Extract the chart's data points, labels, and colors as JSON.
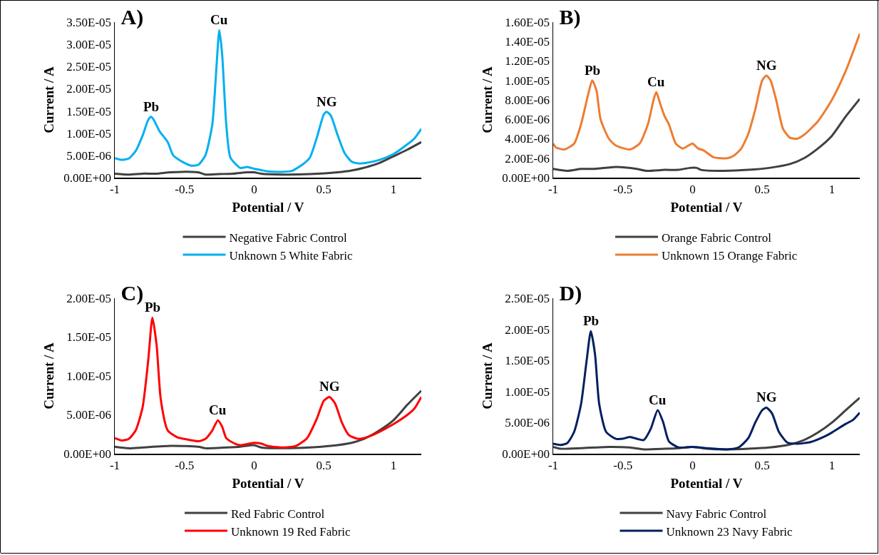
{
  "chart_data": [
    {
      "type": "line",
      "title": "A)",
      "xlabel": "Potential / V",
      "ylabel": "Current / A",
      "xlim": [
        -1,
        1.2
      ],
      "xticks": [
        -1,
        -0.5,
        0,
        0.5,
        1
      ],
      "ylim": [
        0,
        3.5e-05
      ],
      "yticks": [
        {
          "value": 0,
          "label": "0.00E+00"
        },
        {
          "value": 5e-06,
          "label": "5.00E-06"
        },
        {
          "value": 1e-05,
          "label": "1.00E-05"
        },
        {
          "value": 1.5e-05,
          "label": "1.50E-05"
        },
        {
          "value": 2e-05,
          "label": "2.00E-05"
        },
        {
          "value": 2.5e-05,
          "label": "2.50E-05"
        },
        {
          "value": 3e-05,
          "label": "3.00E-05"
        },
        {
          "value": 3.5e-05,
          "label": "3.50E-05"
        }
      ],
      "grid": false,
      "legend": "bottom",
      "marker": "none",
      "annotations": [
        {
          "text": "Pb",
          "x": -0.74,
          "y": 1.37e-05
        },
        {
          "text": "Cu",
          "x": -0.25,
          "y": 3.32e-05
        },
        {
          "text": "NG",
          "x": 0.52,
          "y": 1.48e-05
        }
      ],
      "series": [
        {
          "name": "Negative Fabric Control",
          "color": "#404040",
          "x": [
            -1,
            -0.9,
            -0.8,
            -0.7,
            -0.6,
            -0.45,
            -0.4,
            -0.35,
            -0.25,
            -0.15,
            -0.05,
            0,
            0.05,
            0.2,
            0.4,
            0.6,
            0.7,
            0.8,
            0.9,
            1.0,
            1.1,
            1.2
          ],
          "values": [
            9e-07,
            7e-07,
            9e-07,
            9e-07,
            1.2e-06,
            1.3e-06,
            1.2e-06,
            7e-07,
            8e-07,
            9e-07,
            1.2e-06,
            1.2e-06,
            9e-07,
            7e-07,
            8e-07,
            1.2e-06,
            1.6e-06,
            2.3e-06,
            3.3e-06,
            4.8e-06,
            6.3e-06,
            8e-06
          ]
        },
        {
          "name": "Unknown 5 White Fabric",
          "color": "#00b0f0",
          "x": [
            -1,
            -0.95,
            -0.9,
            -0.85,
            -0.8,
            -0.76,
            -0.74,
            -0.72,
            -0.68,
            -0.62,
            -0.58,
            -0.5,
            -0.45,
            -0.4,
            -0.35,
            -0.3,
            -0.27,
            -0.25,
            -0.23,
            -0.2,
            -0.17,
            -0.1,
            -0.05,
            0,
            0.05,
            0.1,
            0.2,
            0.27,
            0.35,
            0.4,
            0.45,
            0.5,
            0.52,
            0.55,
            0.6,
            0.65,
            0.7,
            0.75,
            0.8,
            0.9,
            1.0,
            1.1,
            1.15,
            1.2
          ],
          "values": [
            4.4e-06,
            4e-06,
            4.3e-06,
            6e-06,
            9.5e-06,
            1.3e-05,
            1.37e-05,
            1.3e-05,
            1.05e-05,
            8e-06,
            5e-06,
            3.3e-06,
            2.7e-06,
            2.9e-06,
            5e-06,
            1.2e-05,
            2.5e-05,
            3.32e-05,
            2.8e-05,
            1.2e-05,
            4.5e-06,
            2.2e-06,
            2.4e-06,
            2e-06,
            1.7e-06,
            1.4e-06,
            1.3e-06,
            1.5e-06,
            3e-06,
            4.5e-06,
            9e-06,
            1.42e-05,
            1.48e-05,
            1.4e-05,
            9.5e-06,
            5.5e-06,
            3.6e-06,
            3.2e-06,
            3.3e-06,
            4e-06,
            5.3e-06,
            7.5e-06,
            8.8e-06,
            1.1e-05
          ]
        }
      ]
    },
    {
      "type": "line",
      "title": "B)",
      "xlabel": "Potential / V",
      "ylabel": "Current / A",
      "xlim": [
        -1,
        1.2
      ],
      "xticks": [
        -1,
        -0.5,
        0,
        0.5,
        1
      ],
      "ylim": [
        0,
        1.6e-05
      ],
      "yticks": [
        {
          "value": 0,
          "label": "0.00E+00"
        },
        {
          "value": 2e-06,
          "label": "2.00E-06"
        },
        {
          "value": 4e-06,
          "label": "4.00E-06"
        },
        {
          "value": 6e-06,
          "label": "6.00E-06"
        },
        {
          "value": 8e-06,
          "label": "8.00E-06"
        },
        {
          "value": 1e-05,
          "label": "1.00E-05"
        },
        {
          "value": 1.2e-05,
          "label": "1.20E-05"
        },
        {
          "value": 1.4e-05,
          "label": "1.40E-05"
        },
        {
          "value": 1.6e-05,
          "label": "1.60E-05"
        }
      ],
      "grid": false,
      "legend": "bottom",
      "marker": "none",
      "annotations": [
        {
          "text": "Pb",
          "x": -0.72,
          "y": 1e-05
        },
        {
          "text": "Cu",
          "x": -0.26,
          "y": 8.8e-06
        },
        {
          "text": "NG",
          "x": 0.53,
          "y": 1.05e-05
        }
      ],
      "series": [
        {
          "name": "Orange Fabric Control",
          "color": "#404040",
          "x": [
            -1,
            -0.9,
            -0.8,
            -0.7,
            -0.55,
            -0.4,
            -0.33,
            -0.2,
            -0.1,
            -0.02,
            0.03,
            0.06,
            0.2,
            0.4,
            0.55,
            0.7,
            0.8,
            0.9,
            1.0,
            1.1,
            1.2
          ],
          "values": [
            9e-07,
            7e-07,
            9e-07,
            9e-07,
            1.1e-06,
            9e-07,
            7e-07,
            8e-07,
            8e-07,
            1e-06,
            1e-06,
            8e-07,
            7e-07,
            8e-07,
            1e-06,
            1.4e-06,
            2e-06,
            3e-06,
            4.3e-06,
            6.3e-06,
            8.1e-06
          ]
        },
        {
          "name": "Unknown 15 Orange Fabric",
          "color": "#ed7d31",
          "x": [
            -1,
            -0.98,
            -0.92,
            -0.85,
            -0.8,
            -0.75,
            -0.72,
            -0.69,
            -0.66,
            -0.6,
            -0.55,
            -0.45,
            -0.38,
            -0.32,
            -0.28,
            -0.26,
            -0.23,
            -0.2,
            -0.17,
            -0.12,
            -0.07,
            -0.03,
            0,
            0.04,
            0.08,
            0.15,
            0.25,
            0.3,
            0.35,
            0.4,
            0.45,
            0.5,
            0.53,
            0.56,
            0.6,
            0.65,
            0.7,
            0.75,
            0.8,
            0.9,
            1.0,
            1.1,
            1.2
          ],
          "values": [
            3.5e-06,
            3.1e-06,
            2.9e-06,
            3.5e-06,
            5.5e-06,
            8.5e-06,
            1e-05,
            9e-06,
            6e-06,
            4e-06,
            3.3e-06,
            2.9e-06,
            3.5e-06,
            5.5e-06,
            8e-06,
            8.8e-06,
            7.5e-06,
            6.3e-06,
            5.5e-06,
            3.5e-06,
            3e-06,
            3.3e-06,
            3.5e-06,
            3e-06,
            2.8e-06,
            2.1e-06,
            2e-06,
            2.3e-06,
            3e-06,
            4.5e-06,
            7e-06,
            1e-05,
            1.05e-05,
            1e-05,
            8e-06,
            5e-06,
            4.1e-06,
            4e-06,
            4.4e-06,
            5.8e-06,
            8e-06,
            1.1e-05,
            1.48e-05
          ]
        }
      ]
    },
    {
      "type": "line",
      "title": "C)",
      "xlabel": "Potential / V",
      "ylabel": "Current / A",
      "xlim": [
        -1,
        1.2
      ],
      "xticks": [
        -1,
        -0.5,
        0,
        0.5,
        1
      ],
      "ylim": [
        0,
        2e-05
      ],
      "yticks": [
        {
          "value": 0,
          "label": "0.00E+00"
        },
        {
          "value": 5e-06,
          "label": "5.00E-06"
        },
        {
          "value": 1e-05,
          "label": "1.00E-05"
        },
        {
          "value": 1.5e-05,
          "label": "1.50E-05"
        },
        {
          "value": 2e-05,
          "label": "2.00E-05"
        }
      ],
      "grid": false,
      "legend": "bottom",
      "marker": "none",
      "annotations": [
        {
          "text": "Pb",
          "x": -0.73,
          "y": 1.75e-05
        },
        {
          "text": "Cu",
          "x": -0.26,
          "y": 4.3e-06
        },
        {
          "text": "NG",
          "x": 0.54,
          "y": 7.3e-06
        }
      ],
      "series": [
        {
          "name": "Red Fabric Control",
          "color": "#404040",
          "x": [
            -1,
            -0.9,
            -0.8,
            -0.6,
            -0.4,
            -0.35,
            -0.2,
            -0.1,
            0,
            0.05,
            0.2,
            0.4,
            0.55,
            0.7,
            0.8,
            0.9,
            1.0,
            1.1,
            1.2
          ],
          "values": [
            9e-07,
            7e-07,
            8e-07,
            1e-06,
            9e-07,
            7e-07,
            8e-07,
            9e-07,
            1.1e-06,
            8e-07,
            7e-07,
            8e-07,
            1e-06,
            1.4e-06,
            2e-06,
            3e-06,
            4.3e-06,
            6.3e-06,
            8.1e-06
          ]
        },
        {
          "name": "Unknown 19 Red Fabric",
          "color": "#ff0000",
          "x": [
            -1,
            -0.95,
            -0.9,
            -0.85,
            -0.8,
            -0.76,
            -0.73,
            -0.7,
            -0.67,
            -0.62,
            -0.55,
            -0.5,
            -0.4,
            -0.35,
            -0.3,
            -0.26,
            -0.23,
            -0.2,
            -0.15,
            -0.1,
            0,
            0.05,
            0.1,
            0.2,
            0.3,
            0.38,
            0.45,
            0.5,
            0.54,
            0.58,
            0.63,
            0.68,
            0.75,
            0.85,
            0.95,
            1.0,
            1.1,
            1.15,
            1.2
          ],
          "values": [
            2e-06,
            1.7e-06,
            1.9e-06,
            3e-06,
            6e-06,
            1.2e-05,
            1.75e-05,
            1.4e-05,
            7e-06,
            3e-06,
            2.1e-06,
            1.9e-06,
            1.6e-06,
            1.9e-06,
            3e-06,
            4.3e-06,
            3.5e-06,
            2e-06,
            1.4e-06,
            1.1e-06,
            1.4e-06,
            1.3e-06,
            1e-06,
            8e-07,
            1e-06,
            2e-06,
            4.5e-06,
            6.8e-06,
            7.3e-06,
            6.5e-06,
            4e-06,
            2.4e-06,
            1.9e-06,
            2.4e-06,
            3.3e-06,
            3.8e-06,
            5e-06,
            5.8e-06,
            7.3e-06
          ]
        }
      ]
    },
    {
      "type": "line",
      "title": "D)",
      "xlabel": "Potential / V",
      "ylabel": "Current / A",
      "xlim": [
        -1,
        1.2
      ],
      "xticks": [
        -1,
        -0.5,
        0,
        0.5,
        1
      ],
      "ylim": [
        0,
        2.5e-05
      ],
      "yticks": [
        {
          "value": 0,
          "label": "0.00E+00"
        },
        {
          "value": 5e-06,
          "label": "5.00E-06"
        },
        {
          "value": 1e-05,
          "label": "1.00E-05"
        },
        {
          "value": 1.5e-05,
          "label": "1.50E-05"
        },
        {
          "value": 2e-05,
          "label": "2.00E-05"
        },
        {
          "value": 2.5e-05,
          "label": "2.50E-05"
        }
      ],
      "grid": false,
      "legend": "bottom",
      "marker": "none",
      "annotations": [
        {
          "text": "Pb",
          "x": -0.73,
          "y": 1.97e-05
        },
        {
          "text": "Cu",
          "x": -0.25,
          "y": 7e-06
        },
        {
          "text": "NG",
          "x": 0.53,
          "y": 7.4e-06
        }
      ],
      "series": [
        {
          "name": "Navy Fabric Control",
          "color": "#404040",
          "x": [
            -1,
            -0.95,
            -0.8,
            -0.6,
            -0.45,
            -0.35,
            -0.2,
            -0.1,
            0,
            0.1,
            0.25,
            0.4,
            0.55,
            0.7,
            0.8,
            0.9,
            1.0,
            1.1,
            1.2
          ],
          "values": [
            1.1e-06,
            8e-07,
            9e-07,
            1.1e-06,
            1e-06,
            7e-07,
            8e-07,
            9e-07,
            1.1e-06,
            8e-07,
            7e-07,
            8e-07,
            1e-06,
            1.5e-06,
            2.2e-06,
            3.4e-06,
            5e-06,
            7e-06,
            9e-06
          ]
        },
        {
          "name": "Unknown 23 Navy Fabric",
          "color": "#002060",
          "x": [
            -1,
            -0.95,
            -0.9,
            -0.85,
            -0.8,
            -0.76,
            -0.73,
            -0.7,
            -0.67,
            -0.62,
            -0.55,
            -0.5,
            -0.45,
            -0.4,
            -0.35,
            -0.3,
            -0.25,
            -0.21,
            -0.17,
            -0.1,
            0,
            0.1,
            0.25,
            0.33,
            0.4,
            0.45,
            0.5,
            0.53,
            0.57,
            0.62,
            0.68,
            0.75,
            0.85,
            0.95,
            1.0,
            1.1,
            1.15,
            1.2
          ],
          "values": [
            1.6e-06,
            1.4e-06,
            1.7e-06,
            3.5e-06,
            8e-06,
            1.5e-05,
            1.97e-05,
            1.6e-05,
            8e-06,
            3.5e-06,
            2.4e-06,
            2.4e-06,
            2.7e-06,
            2.4e-06,
            2.2e-06,
            4e-06,
            7e-06,
            5e-06,
            2e-06,
            1e-06,
            1.1e-06,
            9e-07,
            7e-07,
            1e-06,
            2.5e-06,
            5e-06,
            7e-06,
            7.4e-06,
            6.5e-06,
            3.5e-06,
            1.8e-06,
            1.6e-06,
            1.9e-06,
            2.8e-06,
            3.4e-06,
            4.8e-06,
            5.4e-06,
            6.6e-06
          ]
        }
      ]
    }
  ]
}
